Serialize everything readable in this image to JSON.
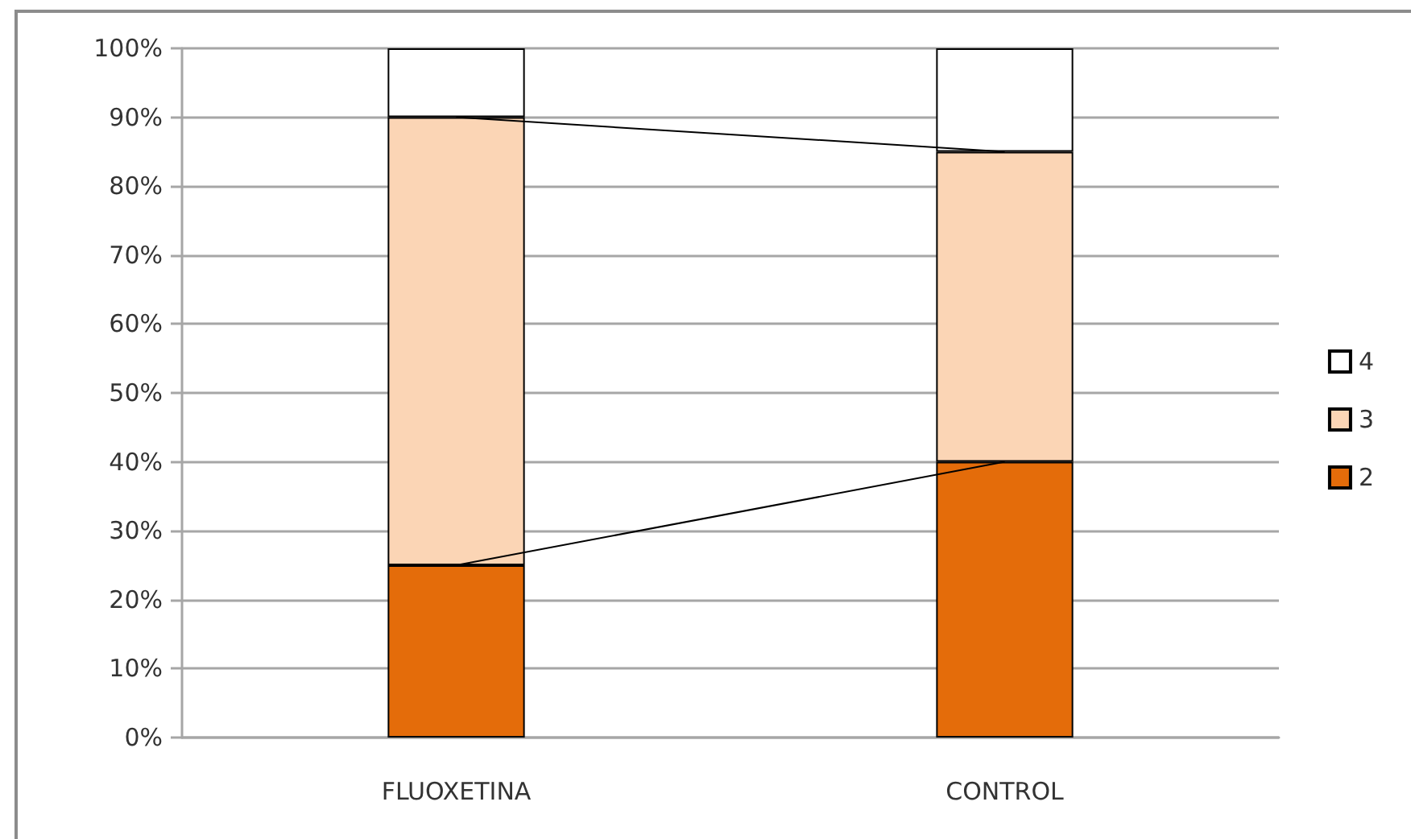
{
  "chart_data": {
    "type": "bar",
    "stacked": true,
    "categories": [
      "FLUOXETINA",
      "CONTROL"
    ],
    "series": [
      {
        "name": "2",
        "color": "#e46c0a",
        "values": [
          25,
          40
        ]
      },
      {
        "name": "3",
        "color": "#fbd5b5",
        "values": [
          65,
          45
        ]
      },
      {
        "name": "4",
        "color": "#ffffff",
        "values": [
          10,
          15
        ]
      },
      {
        "type": "line",
        "color": "#000000",
        "values": [
          25,
          40
        ]
      },
      {
        "type": "line",
        "color": "#000000",
        "values": [
          90,
          85
        ]
      }
    ],
    "ylim": [
      0,
      100
    ],
    "yticks": [
      {
        "value": 0,
        "label": "0%"
      },
      {
        "value": 10,
        "label": "10%"
      },
      {
        "value": 20,
        "label": "20%"
      },
      {
        "value": 30,
        "label": "30%"
      },
      {
        "value": 40,
        "label": "40%"
      },
      {
        "value": 50,
        "label": "50%"
      },
      {
        "value": 60,
        "label": "60%"
      },
      {
        "value": 70,
        "label": "70%"
      },
      {
        "value": 80,
        "label": "80%"
      },
      {
        "value": 90,
        "label": "90%"
      },
      {
        "value": 100,
        "label": "100%"
      }
    ],
    "grid": "y",
    "legend": "right"
  }
}
